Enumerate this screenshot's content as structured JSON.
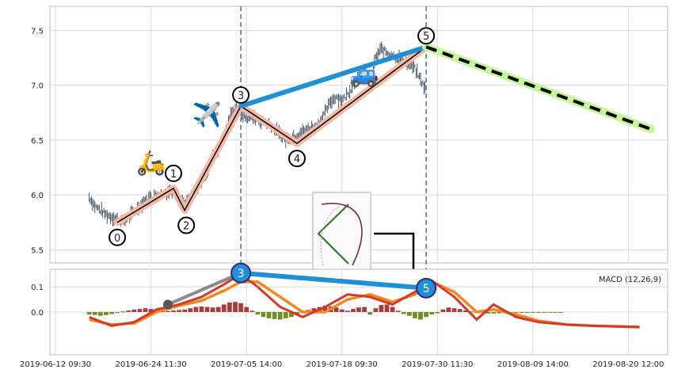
{
  "chart_data": [
    {
      "type": "candlestick",
      "panel": "price",
      "ylim": [
        5.38,
        7.72
      ],
      "yticks": [
        "5.5",
        "6.0",
        "6.5",
        "7.0",
        "7.5"
      ],
      "ytick_values": [
        5.5,
        6.0,
        6.5,
        7.0,
        7.5
      ],
      "grid": true,
      "price_series": [
        [
          0,
          5.98
        ],
        [
          1,
          5.9
        ],
        [
          2,
          5.86
        ],
        [
          3,
          5.82
        ],
        [
          4,
          5.8
        ],
        [
          5,
          5.78
        ],
        [
          6,
          5.76
        ],
        [
          7,
          5.8
        ],
        [
          8,
          5.84
        ],
        [
          9,
          5.9
        ],
        [
          10,
          5.95
        ],
        [
          11,
          5.98
        ],
        [
          12,
          6.0
        ],
        [
          13,
          6.02
        ],
        [
          14,
          6.03
        ],
        [
          15,
          6.05
        ],
        [
          16,
          5.98
        ],
        [
          17,
          5.9
        ],
        [
          18,
          5.96
        ],
        [
          19,
          6.05
        ],
        [
          20,
          6.12
        ],
        [
          21,
          6.22
        ],
        [
          22,
          6.35
        ],
        [
          23,
          6.42
        ],
        [
          24,
          6.55
        ],
        [
          25,
          6.7
        ],
        [
          26,
          6.8
        ],
        [
          27,
          6.75
        ],
        [
          28,
          6.7
        ],
        [
          29,
          6.72
        ],
        [
          30,
          6.68
        ],
        [
          31,
          6.66
        ],
        [
          32,
          6.65
        ],
        [
          33,
          6.6
        ],
        [
          34,
          6.55
        ],
        [
          35,
          6.5
        ],
        [
          36,
          6.52
        ],
        [
          37,
          6.55
        ],
        [
          38,
          6.58
        ],
        [
          39,
          6.6
        ],
        [
          40,
          6.62
        ],
        [
          41,
          6.66
        ],
        [
          42,
          6.75
        ],
        [
          43,
          6.85
        ],
        [
          44,
          6.9
        ],
        [
          45,
          6.86
        ],
        [
          46,
          6.92
        ],
        [
          47,
          7.0
        ],
        [
          48,
          7.08
        ],
        [
          49,
          7.14
        ],
        [
          50,
          7.0
        ],
        [
          51,
          7.25
        ],
        [
          52,
          7.33
        ],
        [
          53,
          7.3
        ],
        [
          54,
          7.28
        ],
        [
          55,
          7.25
        ],
        [
          56,
          7.22
        ],
        [
          57,
          7.2
        ],
        [
          58,
          7.15
        ],
        [
          59,
          7.05
        ],
        [
          60,
          6.95
        ]
      ],
      "zigzag": {
        "points": [
          {
            "label": "0",
            "x": 5,
            "y": 5.75
          },
          {
            "label": "1",
            "x": 15,
            "y": 6.06
          },
          {
            "label": "2",
            "x": 17,
            "y": 5.86
          },
          {
            "label": "3",
            "x": 27,
            "y": 6.81
          },
          {
            "label": "4",
            "x": 37,
            "y": 6.47
          },
          {
            "label": "5",
            "x": 60,
            "y": 7.35
          }
        ]
      },
      "trend_line": {
        "from": {
          "x": 27,
          "y": 6.81
        },
        "to": {
          "x": 60,
          "y": 7.35
        },
        "color": "#1f8fd6"
      },
      "projection": {
        "from": {
          "x": 60,
          "y": 7.35
        },
        "to": {
          "x": 100,
          "y": 6.6
        },
        "color": "#000000",
        "glow": "#c6f59a"
      },
      "vertical_markers_x": [
        27,
        60
      ],
      "emoji": [
        {
          "symbol": "🛵",
          "x": 11,
          "y": 6.22
        },
        {
          "symbol": "✈️",
          "x": 21,
          "y": 6.66
        },
        {
          "symbol": "🚙",
          "x": 49,
          "y": 7.03
        }
      ]
    },
    {
      "type": "macd",
      "panel": "macd",
      "legend": "MACD (12,26,9)",
      "ylim": [
        -0.17,
        0.17
      ],
      "yticks": [
        "0.0",
        "0.1"
      ],
      "ytick_values": [
        0.0,
        0.1
      ],
      "grid": true,
      "macd_line": [
        [
          0,
          -0.02
        ],
        [
          4,
          -0.055
        ],
        [
          8,
          -0.04
        ],
        [
          12,
          0.01
        ],
        [
          16,
          0.03
        ],
        [
          20,
          0.06
        ],
        [
          24,
          0.11
        ],
        [
          27,
          0.15
        ],
        [
          30,
          0.1
        ],
        [
          34,
          0.02
        ],
        [
          38,
          -0.02
        ],
        [
          42,
          0.02
        ],
        [
          46,
          0.07
        ],
        [
          50,
          0.06
        ],
        [
          54,
          0.03
        ],
        [
          58,
          0.08
        ],
        [
          61,
          0.125
        ],
        [
          65,
          0.06
        ],
        [
          69,
          -0.03
        ],
        [
          72,
          0.03
        ],
        [
          76,
          -0.02
        ],
        [
          80,
          -0.04
        ],
        [
          85,
          -0.05
        ],
        [
          90,
          -0.055
        ],
        [
          98,
          -0.06
        ]
      ],
      "signal_line": [
        [
          0,
          -0.03
        ],
        [
          4,
          -0.05
        ],
        [
          8,
          -0.045
        ],
        [
          12,
          0.0
        ],
        [
          16,
          0.025
        ],
        [
          20,
          0.045
        ],
        [
          24,
          0.085
        ],
        [
          27,
          0.12
        ],
        [
          30,
          0.12
        ],
        [
          34,
          0.06
        ],
        [
          38,
          0.0
        ],
        [
          42,
          0.0
        ],
        [
          46,
          0.05
        ],
        [
          50,
          0.07
        ],
        [
          54,
          0.04
        ],
        [
          58,
          0.07
        ],
        [
          61,
          0.12
        ],
        [
          65,
          0.08
        ],
        [
          69,
          0.0
        ],
        [
          72,
          0.01
        ],
        [
          76,
          -0.01
        ],
        [
          80,
          -0.035
        ],
        [
          85,
          -0.05
        ],
        [
          90,
          -0.055
        ],
        [
          98,
          -0.06
        ]
      ],
      "histogram": [
        [
          0,
          -0.01
        ],
        [
          1,
          -0.012
        ],
        [
          2,
          -0.015
        ],
        [
          3,
          -0.012
        ],
        [
          4,
          -0.008
        ],
        [
          5,
          -0.004
        ],
        [
          6,
          0.002
        ],
        [
          7,
          0.006
        ],
        [
          8,
          0.01
        ],
        [
          9,
          0.012
        ],
        [
          10,
          0.015
        ],
        [
          11,
          0.012
        ],
        [
          12,
          0.008
        ],
        [
          13,
          0.005
        ],
        [
          14,
          0.004
        ],
        [
          15,
          0.006
        ],
        [
          16,
          0.008
        ],
        [
          17,
          0.01
        ],
        [
          18,
          0.015
        ],
        [
          19,
          0.02
        ],
        [
          20,
          0.022
        ],
        [
          21,
          0.02
        ],
        [
          22,
          0.018
        ],
        [
          23,
          0.02
        ],
        [
          24,
          0.03
        ],
        [
          25,
          0.038
        ],
        [
          26,
          0.04
        ],
        [
          27,
          0.035
        ],
        [
          28,
          0.02
        ],
        [
          29,
          0.005
        ],
        [
          30,
          -0.01
        ],
        [
          31,
          -0.02
        ],
        [
          32,
          -0.025
        ],
        [
          33,
          -0.028
        ],
        [
          34,
          -0.03
        ],
        [
          35,
          -0.025
        ],
        [
          36,
          -0.02
        ],
        [
          37,
          -0.01
        ],
        [
          38,
          0.0
        ],
        [
          39,
          0.008
        ],
        [
          40,
          0.015
        ],
        [
          41,
          0.02
        ],
        [
          42,
          0.025
        ],
        [
          43,
          0.022
        ],
        [
          44,
          0.018
        ],
        [
          45,
          0.01
        ],
        [
          46,
          0.005
        ],
        [
          47,
          0.012
        ],
        [
          48,
          0.018
        ],
        [
          49,
          0.02
        ],
        [
          50,
          -0.01
        ],
        [
          51,
          0.015
        ],
        [
          52,
          0.028
        ],
        [
          53,
          0.03
        ],
        [
          54,
          0.02
        ],
        [
          55,
          0.005
        ],
        [
          56,
          -0.008
        ],
        [
          57,
          -0.015
        ],
        [
          58,
          -0.025
        ],
        [
          59,
          -0.03
        ],
        [
          60,
          -0.02
        ],
        [
          61,
          -0.01
        ],
        [
          62,
          -0.005
        ],
        [
          63,
          0.01
        ],
        [
          64,
          0.018
        ],
        [
          65,
          0.015
        ],
        [
          66,
          0.012
        ],
        [
          67,
          0.006
        ],
        [
          68,
          0.002
        ],
        [
          69,
          -0.002
        ],
        [
          70,
          -0.004
        ],
        [
          71,
          -0.006
        ],
        [
          72,
          -0.006
        ],
        [
          73,
          -0.005
        ],
        [
          74,
          -0.004
        ],
        [
          75,
          -0.003
        ],
        [
          76,
          -0.003
        ],
        [
          77,
          -0.002
        ],
        [
          78,
          -0.002
        ],
        [
          79,
          -0.002
        ],
        [
          80,
          -0.001
        ],
        [
          81,
          -0.001
        ],
        [
          82,
          -0.001
        ],
        [
          83,
          -0.001
        ],
        [
          84,
          -0.001
        ]
      ],
      "trend_line": {
        "from": {
          "x": 27,
          "y": 0.155
        },
        "to": {
          "x": 60,
          "y": 0.095
        },
        "color": "#1f8fd6"
      },
      "grey_line": {
        "from": {
          "x": 14,
          "y": 0.03
        },
        "to": {
          "x": 27,
          "y": 0.155
        }
      },
      "markers": [
        {
          "label": "3",
          "x": 27,
          "y": 0.155
        },
        {
          "label": "5",
          "x": 60,
          "y": 0.095
        }
      ]
    }
  ],
  "x_axis": {
    "ticks": [
      {
        "label": "2019-06-12 09:30",
        "x": -6
      },
      {
        "label": "2019-06-24 11:30",
        "x": 11
      },
      {
        "label": "2019-07-05 14:00",
        "x": 28
      },
      {
        "label": "2019-07-18 09:30",
        "x": 45
      },
      {
        "label": "2019-07-30 11:30",
        "x": 62
      },
      {
        "label": "2019-08-09 14:00",
        "x": 79
      },
      {
        "label": "2019-08-20 12:00",
        "x": 96
      }
    ],
    "xlim": [
      -7,
      103
    ]
  },
  "colors": {
    "grid": "#d8d8d8",
    "frame": "#bbbbbb",
    "candle": "#4a5868",
    "zigzag_fill": "#f4b9a4",
    "zigzag_line": "#000000",
    "vline": "#5a6e88",
    "hist_pos": "#a83a3a",
    "hist_neg": "#6f8f22",
    "macd": "#d23b2a",
    "signal": "#f5871f",
    "marker_fill": "#1f8fd6",
    "marker_edge": "#2a2a7a"
  }
}
